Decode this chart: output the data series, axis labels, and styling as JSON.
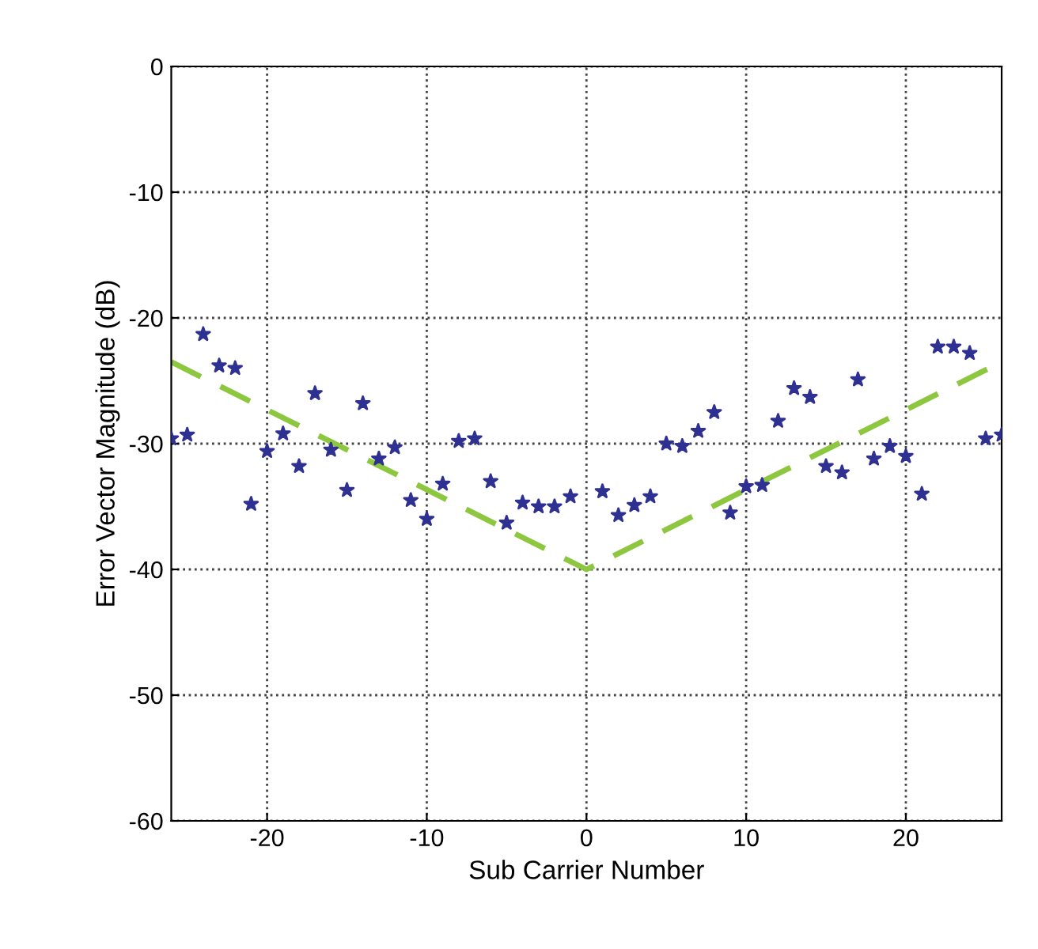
{
  "chart_data": {
    "type": "scatter",
    "xlabel": "Sub Carrier Number",
    "ylabel": "Error Vector Magnitude (dB)",
    "xlim": [
      -26,
      26
    ],
    "ylim": [
      -60,
      0
    ],
    "xticks": [
      -20,
      -10,
      0,
      10,
      20
    ],
    "yticks": [
      -60,
      -50,
      -40,
      -30,
      -20,
      -10,
      0
    ],
    "grid": true,
    "marker": "star",
    "series": [
      {
        "color": "#2e3192",
        "x": [
          -26,
          -25,
          -24,
          -23,
          -22,
          -21,
          -20,
          -19,
          -18,
          -17,
          -16,
          -15,
          -14,
          -13,
          -12,
          -11,
          -10,
          -9,
          -8,
          -7,
          -6,
          -5,
          -4,
          -3,
          -2,
          -1,
          1,
          2,
          3,
          4,
          5,
          6,
          7,
          8,
          9,
          10,
          11,
          12,
          13,
          14,
          15,
          16,
          17,
          18,
          19,
          20,
          21,
          22,
          23,
          24,
          25,
          26
        ],
        "values": [
          -29.6,
          -29.3,
          -21.3,
          -23.8,
          -24,
          -34.8,
          -30.6,
          -29.2,
          -31.8,
          -26,
          -30.5,
          -33.7,
          -26.8,
          -31.2,
          -30.3,
          -34.5,
          -36,
          -33.2,
          -29.8,
          -29.6,
          -33,
          -36.3,
          -34.7,
          -35,
          -35,
          -34.2,
          -33.8,
          -35.7,
          -34.9,
          -34.2,
          -30,
          -30.2,
          -29,
          -27.5,
          -35.5,
          -33.4,
          -33.3,
          -28.2,
          -25.6,
          -26.3,
          -31.8,
          -32.3,
          -24.9,
          -31.2,
          -30.2,
          -31,
          -34,
          -22.3,
          -22.3,
          -22.8,
          -29.6,
          -29.3
        ]
      },
      {
        "type": "line",
        "color": "#8dc63f",
        "line_style": "dashed",
        "marker": "none",
        "x": [
          -26,
          0,
          26
        ],
        "values": [
          -23.5,
          -40,
          -23.5
        ]
      }
    ]
  }
}
